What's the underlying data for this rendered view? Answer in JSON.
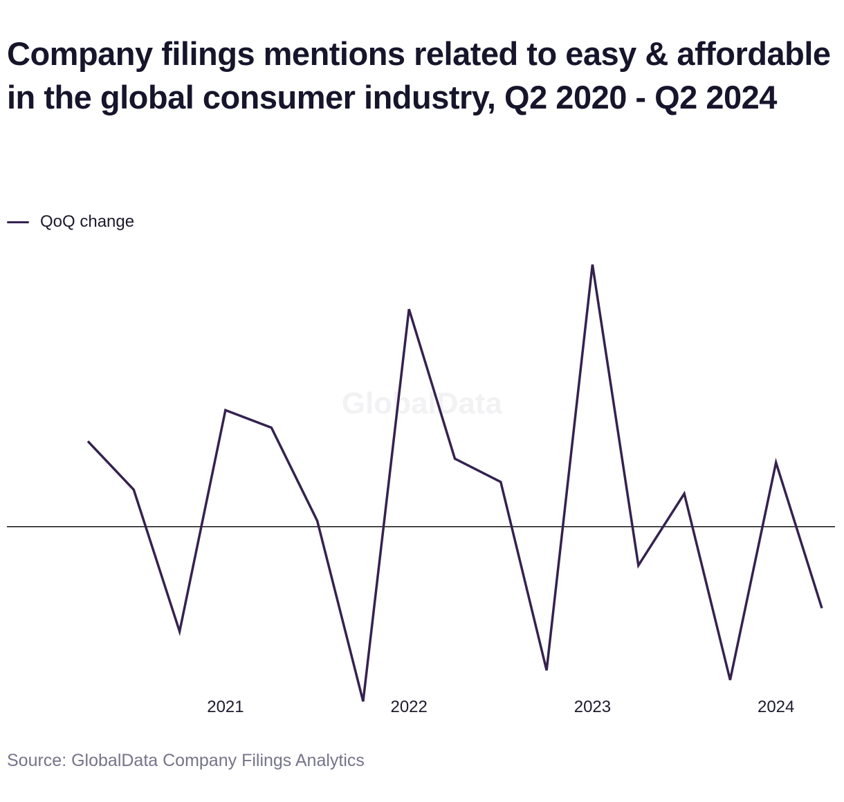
{
  "header": {
    "title": "Company filings mentions related to easy & affordable in the global consumer industry, Q2 2020 - Q2 2024"
  },
  "footer": {
    "source": "Source: GlobalData Company Filings Analytics"
  },
  "watermark": {
    "text": "GlobalData"
  },
  "colors": {
    "series": "#35224f",
    "zero_line": "#111111",
    "text": "#1c1b2e",
    "source_text": "#75748a"
  },
  "chart_data": {
    "type": "line",
    "title": "Company filings mentions related to easy & affordable in the global consumer industry, Q2 2020 - Q2 2024",
    "xlabel": "",
    "ylabel": "",
    "x": [
      "Q2 2020",
      "Q3 2020",
      "Q4 2020",
      "Q1 2021",
      "Q2 2021",
      "Q3 2021",
      "Q4 2021",
      "Q1 2022",
      "Q2 2022",
      "Q3 2022",
      "Q4 2022",
      "Q1 2023",
      "Q2 2023",
      "Q3 2023",
      "Q4 2023",
      "Q1 2024",
      "Q2 2024"
    ],
    "x_tick_labels": [
      {
        "at": "Q1 2021",
        "label": "2021"
      },
      {
        "at": "Q1 2022",
        "label": "2022"
      },
      {
        "at": "Q1 2023",
        "label": "2023"
      },
      {
        "at": "Q1 2024",
        "label": "2024"
      }
    ],
    "series": [
      {
        "name": "QoQ change",
        "values": [
          22,
          9.5,
          -27,
          30,
          25.5,
          1.5,
          -45,
          56,
          17.5,
          11.5,
          -37,
          67.5,
          -10,
          8.5,
          -39.5,
          16.5,
          -21
        ]
      }
    ],
    "ylim": [
      -46,
      71
    ],
    "zero_line": true,
    "y_axis_labels_shown": false,
    "grid": false,
    "legend": "top-left"
  }
}
